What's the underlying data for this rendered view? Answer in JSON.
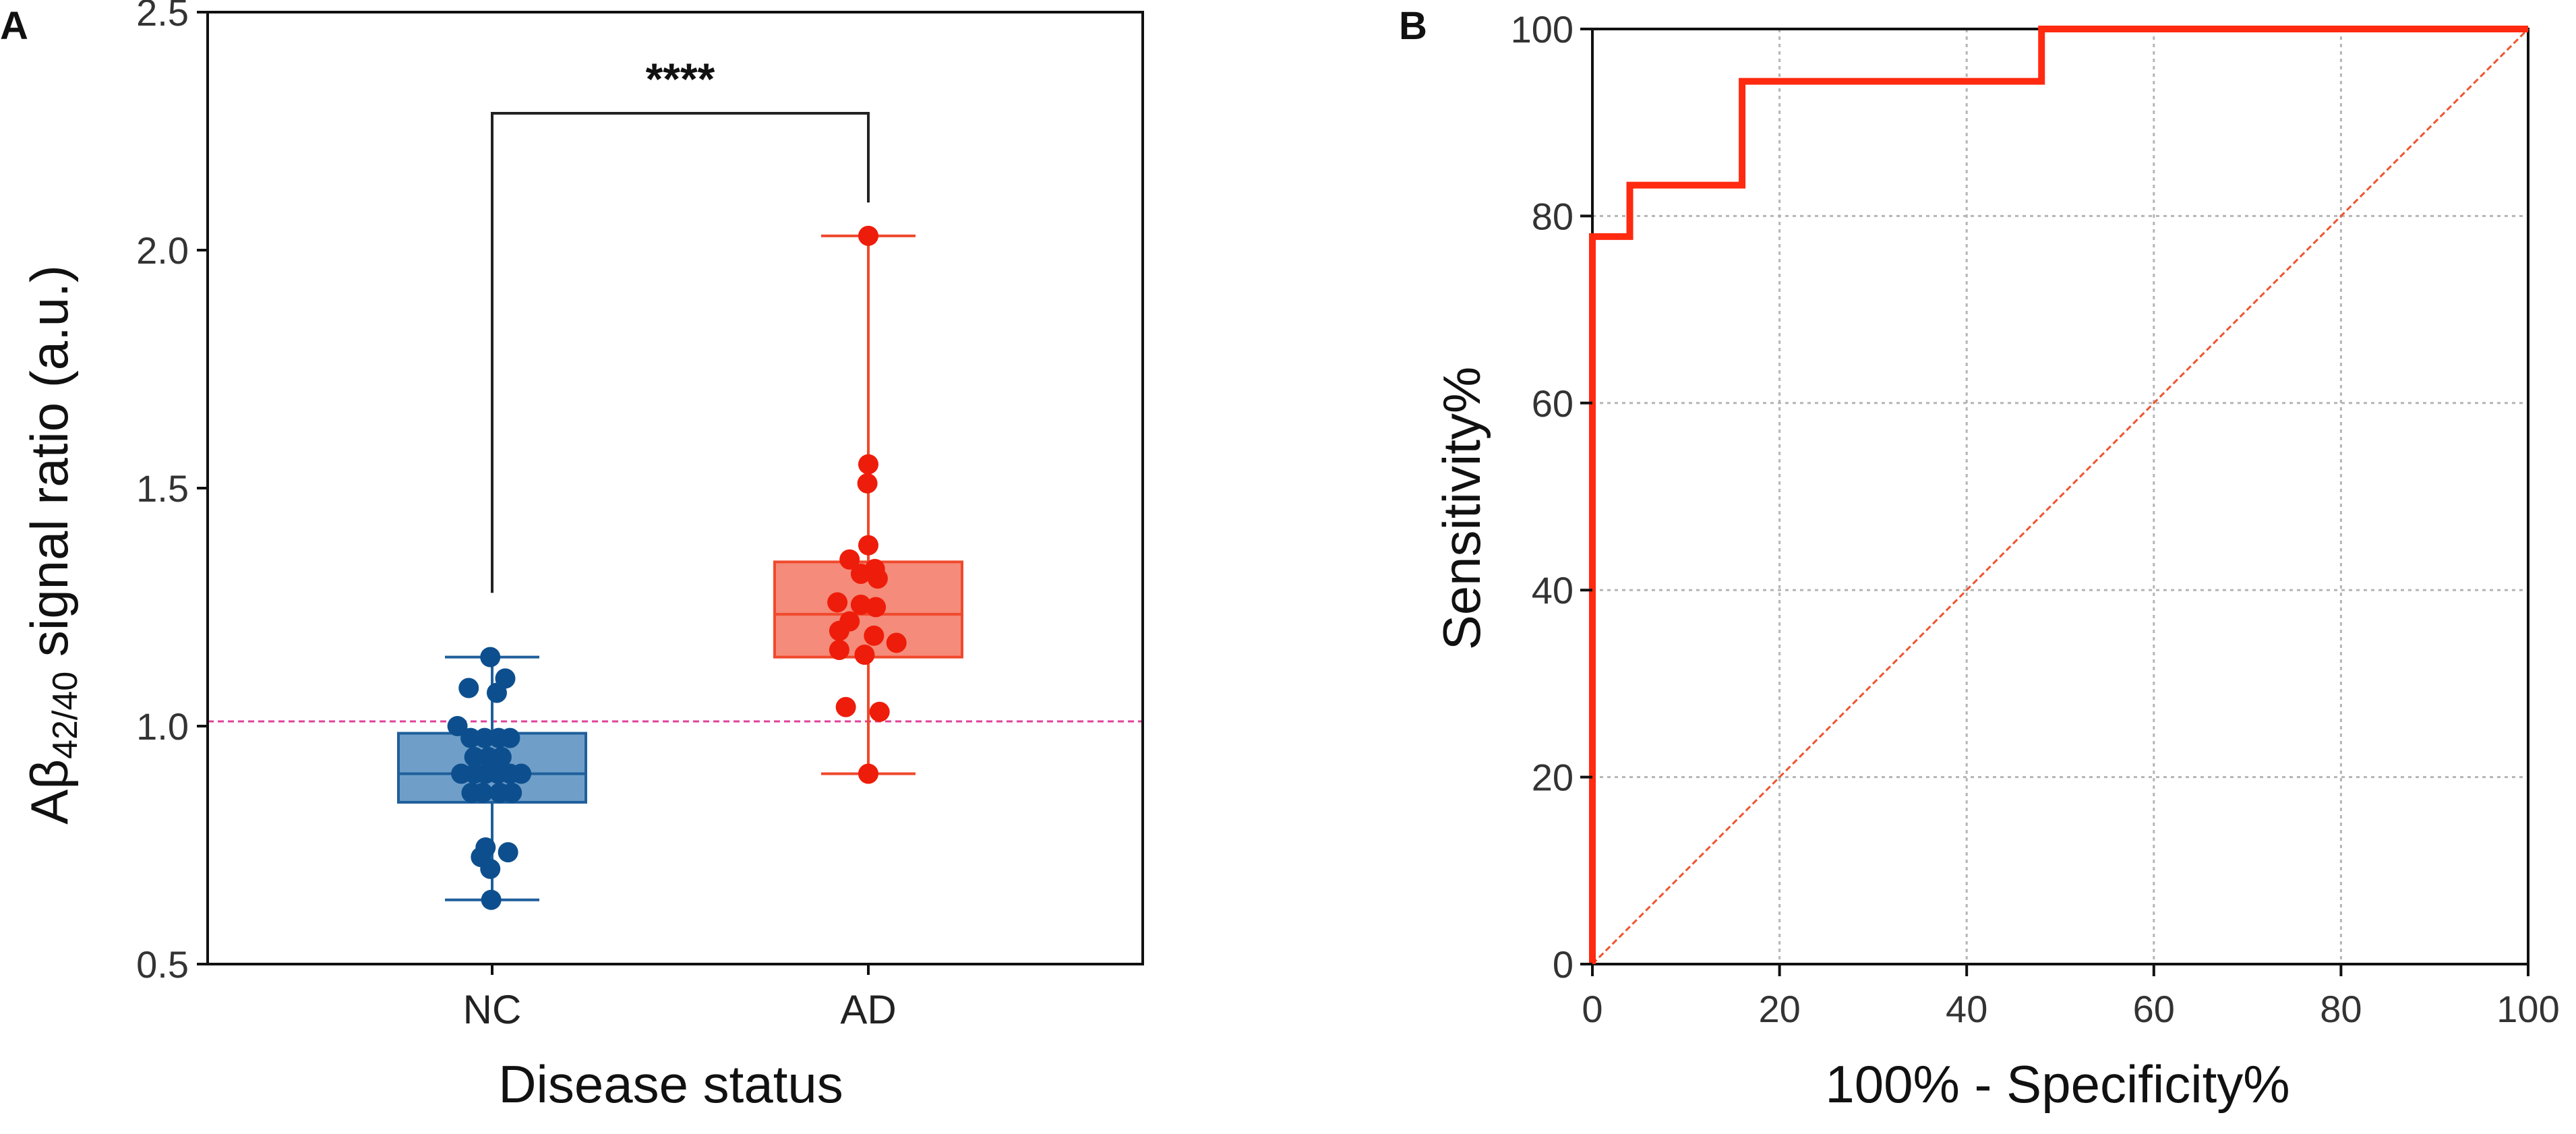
{
  "panels": {
    "A": {
      "label": "A"
    },
    "B": {
      "label": "B"
    }
  },
  "colors": {
    "nc_fill": "#6f9fc9",
    "nc_edge": "#1f5f9b",
    "nc_point": "#0d4f8e",
    "ad_fill": "#f58b7a",
    "ad_edge": "#f0492d",
    "ad_point": "#ee1c0a",
    "threshold": "#e0409b",
    "roc": "#ff2a10",
    "diagonal": "#f0542f",
    "grid": "#b5b5b5",
    "axis": "#111111"
  },
  "chart_data": [
    {
      "type": "box",
      "panel": "A",
      "ylabel": {
        "main": "Aβ",
        "subscript": "42/40",
        "rest": " signal ratio (a.u.)"
      },
      "xlabel": "Disease status",
      "ylim": [
        0.5,
        2.5
      ],
      "yticks": [
        0.5,
        1.0,
        1.5,
        2.0,
        2.5
      ],
      "ytick_labels": [
        "0.5",
        "1.0",
        "1.5",
        "2.0",
        "2.5"
      ],
      "categories": [
        "NC",
        "AD"
      ],
      "significance": "****",
      "threshold": 1.01,
      "series": [
        {
          "name": "NC",
          "min": 0.635,
          "q1": 0.84,
          "median": 0.9,
          "q3": 0.985,
          "max": 1.145,
          "points": [
            {
              "x": -0.02,
              "y": 1.145
            },
            {
              "x": 0.14,
              "y": 1.1
            },
            {
              "x": -0.25,
              "y": 1.08
            },
            {
              "x": 0.05,
              "y": 1.07
            },
            {
              "x": -0.37,
              "y": 1.0
            },
            {
              "x": -0.23,
              "y": 0.975
            },
            {
              "x": -0.08,
              "y": 0.975
            },
            {
              "x": 0.07,
              "y": 0.975
            },
            {
              "x": 0.19,
              "y": 0.975
            },
            {
              "x": -0.19,
              "y": 0.935
            },
            {
              "x": -0.04,
              "y": 0.935
            },
            {
              "x": 0.1,
              "y": 0.935
            },
            {
              "x": -0.33,
              "y": 0.9
            },
            {
              "x": -0.19,
              "y": 0.9
            },
            {
              "x": -0.07,
              "y": 0.9
            },
            {
              "x": 0.06,
              "y": 0.9
            },
            {
              "x": 0.19,
              "y": 0.9
            },
            {
              "x": 0.31,
              "y": 0.9
            },
            {
              "x": -0.22,
              "y": 0.86
            },
            {
              "x": -0.1,
              "y": 0.86
            },
            {
              "x": 0.08,
              "y": 0.86
            },
            {
              "x": 0.21,
              "y": 0.86
            },
            {
              "x": -0.07,
              "y": 0.745
            },
            {
              "x": 0.17,
              "y": 0.735
            },
            {
              "x": -0.12,
              "y": 0.725
            },
            {
              "x": -0.02,
              "y": 0.7
            },
            {
              "x": -0.01,
              "y": 0.635
            }
          ]
        },
        {
          "name": "AD",
          "min": 0.9,
          "q1": 1.145,
          "median": 1.235,
          "q3": 1.345,
          "max": 2.03,
          "points": [
            {
              "x": 0.0,
              "y": 2.03
            },
            {
              "x": 0.0,
              "y": 1.55
            },
            {
              "x": -0.01,
              "y": 1.51
            },
            {
              "x": 0.0,
              "y": 1.38
            },
            {
              "x": -0.2,
              "y": 1.35
            },
            {
              "x": 0.07,
              "y": 1.33
            },
            {
              "x": -0.08,
              "y": 1.32
            },
            {
              "x": 0.1,
              "y": 1.31
            },
            {
              "x": -0.33,
              "y": 1.26
            },
            {
              "x": -0.08,
              "y": 1.255
            },
            {
              "x": 0.08,
              "y": 1.25
            },
            {
              "x": -0.2,
              "y": 1.22
            },
            {
              "x": -0.31,
              "y": 1.2
            },
            {
              "x": 0.06,
              "y": 1.19
            },
            {
              "x": 0.3,
              "y": 1.175
            },
            {
              "x": -0.31,
              "y": 1.16
            },
            {
              "x": -0.04,
              "y": 1.15
            },
            {
              "x": -0.24,
              "y": 1.04
            },
            {
              "x": 0.12,
              "y": 1.03
            },
            {
              "x": 0.0,
              "y": 0.9
            }
          ]
        }
      ]
    },
    {
      "type": "line",
      "panel": "B",
      "xlabel": "100% - Specificity%",
      "ylabel": "Sensitivity%",
      "xlim": [
        0,
        100
      ],
      "ylim": [
        0,
        100
      ],
      "xticks": [
        0,
        20,
        40,
        60,
        80,
        100
      ],
      "yticks": [
        0,
        20,
        40,
        60,
        80,
        100
      ],
      "xtick_labels": [
        "0",
        "20",
        "40",
        "60",
        "80",
        "100"
      ],
      "ytick_labels": [
        "0",
        "20",
        "40",
        "60",
        "80",
        "100"
      ],
      "grid": true,
      "series": [
        {
          "name": "ROC",
          "x": [
            0,
            0,
            4,
            4,
            16,
            16,
            48,
            48,
            100
          ],
          "y": [
            0,
            77.8,
            77.8,
            83.3,
            83.3,
            94.4,
            94.4,
            100,
            100
          ]
        },
        {
          "name": "Reference",
          "x": [
            0,
            100
          ],
          "y": [
            0,
            100
          ]
        }
      ]
    }
  ]
}
